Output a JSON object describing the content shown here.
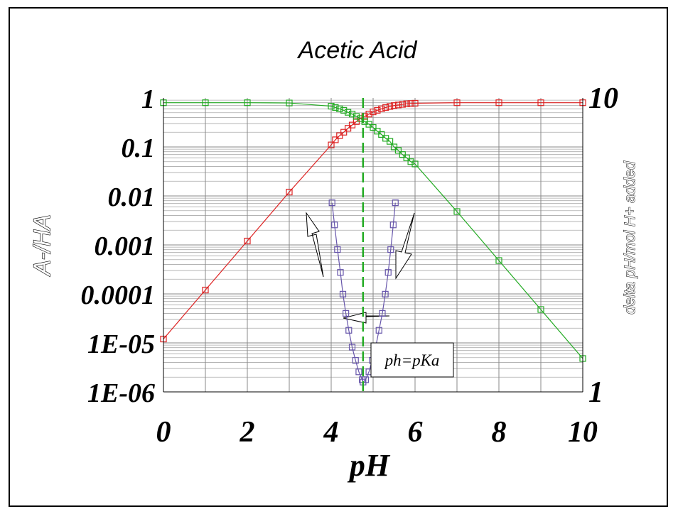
{
  "chart_data": {
    "type": "line",
    "title": "Acetic Acid",
    "xlabel": "pH",
    "ylabel": "A-/HA",
    "y2label": "delta pH/mol H+ added",
    "xlim": [
      0,
      10
    ],
    "ylim": [
      1e-06,
      1
    ],
    "y_scale": "log",
    "y2lim": [
      1,
      10
    ],
    "x_ticks": [
      "0",
      "2",
      "4",
      "6",
      "8",
      "10"
    ],
    "y_ticks": [
      "1",
      "0.1",
      "0.01",
      "0.001",
      "0.0001",
      "1E-05",
      "1E-06"
    ],
    "y2_ticks": [
      "10",
      "1"
    ],
    "grid": true,
    "legend": "none",
    "vline": {
      "x": 4.76,
      "style": "dashed",
      "color": "#22aa22"
    },
    "annotation": {
      "text": "ph=pKa",
      "x": 5.1,
      "y": 1e-05
    },
    "colors": {
      "red": "#dd2222",
      "green": "#22aa22",
      "purple": "#6655aa"
    },
    "series": [
      {
        "color": "#dd2222",
        "marker": "square",
        "x": [
          0,
          1,
          2,
          3,
          4,
          4.1,
          4.2,
          4.3,
          4.4,
          4.5,
          4.6,
          4.7,
          4.8,
          4.9,
          5,
          5.1,
          5.2,
          5.3,
          5.4,
          5.5,
          5.6,
          5.7,
          5.8,
          5.9,
          6,
          7,
          8,
          9,
          10
        ],
        "y": [
          1.2e-05,
          0.00012,
          0.0012,
          0.012,
          0.11,
          0.14,
          0.17,
          0.2,
          0.24,
          0.28,
          0.33,
          0.38,
          0.42,
          0.47,
          0.52,
          0.56,
          0.6,
          0.64,
          0.67,
          0.7,
          0.72,
          0.74,
          0.76,
          0.77,
          0.78,
          0.8,
          0.8,
          0.8,
          0.8
        ]
      },
      {
        "color": "#22aa22",
        "marker": "square",
        "x": [
          0,
          1,
          2,
          3,
          4,
          4.1,
          4.2,
          4.3,
          4.4,
          4.5,
          4.6,
          4.7,
          4.8,
          4.9,
          5,
          5.1,
          5.2,
          5.3,
          5.4,
          5.5,
          5.6,
          5.7,
          5.8,
          5.9,
          6,
          7,
          8,
          9,
          10
        ],
        "y": [
          0.8,
          0.8,
          0.8,
          0.79,
          0.68,
          0.64,
          0.6,
          0.56,
          0.51,
          0.47,
          0.42,
          0.38,
          0.33,
          0.29,
          0.25,
          0.21,
          0.18,
          0.15,
          0.13,
          0.1,
          0.085,
          0.07,
          0.06,
          0.05,
          0.045,
          0.0048,
          0.00048,
          4.8e-05,
          4.8e-06
        ]
      },
      {
        "color": "#6655aa",
        "marker": "square",
        "axis": "y2",
        "x": [
          4.02,
          4.08,
          4.15,
          4.22,
          4.28,
          4.35,
          4.42,
          4.5,
          4.58,
          4.66,
          4.74,
          4.76,
          4.82,
          4.9,
          4.98,
          5.06,
          5.14,
          5.22,
          5.29,
          5.36,
          5.42,
          5.48,
          5.53
        ],
        "y": [
          4.4,
          3.7,
          3.05,
          2.55,
          2.15,
          1.85,
          1.62,
          1.42,
          1.28,
          1.17,
          1.1,
          1.08,
          1.1,
          1.17,
          1.28,
          1.42,
          1.62,
          1.85,
          2.15,
          2.55,
          3.05,
          3.7,
          4.4
        ]
      }
    ]
  }
}
